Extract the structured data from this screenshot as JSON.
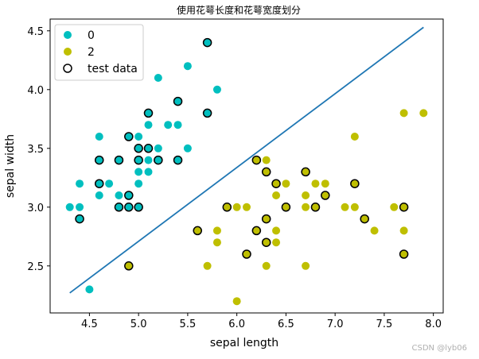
{
  "chart_data": {
    "type": "scatter",
    "title": "使用花萼长度和花萼宽度划分",
    "xlabel": "sepal length",
    "ylabel": "sepal width",
    "xlim": [
      4.1,
      8.1
    ],
    "ylim": [
      2.1,
      4.6
    ],
    "x_ticks": [
      4.5,
      5.0,
      5.5,
      6.0,
      6.5,
      7.0,
      7.5,
      8.0
    ],
    "x_tick_labels": [
      "4.5",
      "5.0",
      "5.5",
      "6.0",
      "6.5",
      "7.0",
      "7.5",
      "8.0"
    ],
    "y_ticks": [
      2.5,
      3.0,
      3.5,
      4.0,
      4.5
    ],
    "y_tick_labels": [
      "2.5",
      "3.0",
      "3.5",
      "4.0",
      "4.5"
    ],
    "grid": false,
    "legend_position": "top-left",
    "legend": [
      {
        "label": "0",
        "marker": "filled-circle",
        "color": "#00bfbf"
      },
      {
        "label": "2",
        "marker": "filled-circle",
        "color": "#bfbf00"
      },
      {
        "label": "test data",
        "marker": "hollow-circle",
        "color": "#000000"
      }
    ],
    "series": [
      {
        "name": "0",
        "color": "#00bfbf",
        "points": [
          [
            4.3,
            3.0
          ],
          [
            4.4,
            3.2
          ],
          [
            4.4,
            3.0
          ],
          [
            4.5,
            2.3
          ],
          [
            4.6,
            3.6
          ],
          [
            4.6,
            3.1
          ],
          [
            4.7,
            3.2
          ],
          [
            4.8,
            3.1
          ],
          [
            4.9,
            3.1
          ],
          [
            5.0,
            3.6
          ],
          [
            5.0,
            3.3
          ],
          [
            5.0,
            3.2
          ],
          [
            5.1,
            3.7
          ],
          [
            5.1,
            3.3
          ],
          [
            5.1,
            3.4
          ],
          [
            5.2,
            4.1
          ],
          [
            5.2,
            3.5
          ],
          [
            5.3,
            3.7
          ],
          [
            5.4,
            3.7
          ],
          [
            5.4,
            3.4
          ],
          [
            5.4,
            3.9
          ],
          [
            5.5,
            4.2
          ],
          [
            5.5,
            3.5
          ],
          [
            5.7,
            3.8
          ],
          [
            5.8,
            4.0
          ]
        ]
      },
      {
        "name": "2",
        "color": "#bfbf00",
        "points": [
          [
            5.8,
            2.7
          ],
          [
            5.8,
            2.8
          ],
          [
            6.0,
            3.0
          ],
          [
            6.0,
            2.2
          ],
          [
            6.1,
            3.0
          ],
          [
            6.2,
            2.8
          ],
          [
            6.3,
            3.4
          ],
          [
            6.3,
            2.5
          ],
          [
            6.3,
            2.9
          ],
          [
            6.4,
            2.8
          ],
          [
            6.4,
            3.1
          ],
          [
            6.4,
            2.7
          ],
          [
            6.5,
            3.2
          ],
          [
            6.5,
            3.0
          ],
          [
            6.7,
            3.1
          ],
          [
            6.7,
            3.0
          ],
          [
            6.7,
            2.5
          ],
          [
            6.8,
            3.2
          ],
          [
            6.9,
            3.2
          ],
          [
            7.1,
            3.0
          ],
          [
            7.2,
            3.6
          ],
          [
            7.2,
            3.0
          ],
          [
            7.4,
            2.8
          ],
          [
            7.6,
            3.0
          ],
          [
            7.7,
            3.8
          ],
          [
            7.7,
            2.8
          ],
          [
            7.9,
            3.8
          ],
          [
            5.7,
            2.5
          ]
        ]
      },
      {
        "name": "test data",
        "points": [
          {
            "x": 4.4,
            "y": 2.9,
            "class": "0"
          },
          {
            "x": 4.6,
            "y": 3.4,
            "class": "0"
          },
          {
            "x": 4.6,
            "y": 3.2,
            "class": "0"
          },
          {
            "x": 4.8,
            "y": 3.4,
            "class": "0"
          },
          {
            "x": 4.8,
            "y": 3.0,
            "class": "0"
          },
          {
            "x": 4.9,
            "y": 3.6,
            "class": "0"
          },
          {
            "x": 4.9,
            "y": 3.1,
            "class": "0"
          },
          {
            "x": 4.9,
            "y": 3.0,
            "class": "0"
          },
          {
            "x": 5.0,
            "y": 3.5,
            "class": "0"
          },
          {
            "x": 5.0,
            "y": 3.4,
            "class": "0"
          },
          {
            "x": 5.0,
            "y": 3.0,
            "class": "0"
          },
          {
            "x": 5.1,
            "y": 3.8,
            "class": "0"
          },
          {
            "x": 5.1,
            "y": 3.5,
            "class": "0"
          },
          {
            "x": 5.2,
            "y": 3.4,
            "class": "0"
          },
          {
            "x": 5.4,
            "y": 3.9,
            "class": "0"
          },
          {
            "x": 5.4,
            "y": 3.4,
            "class": "0"
          },
          {
            "x": 5.7,
            "y": 4.4,
            "class": "0"
          },
          {
            "x": 5.7,
            "y": 3.8,
            "class": "0"
          },
          {
            "x": 4.9,
            "y": 2.5,
            "class": "2"
          },
          {
            "x": 5.6,
            "y": 2.8,
            "class": "2"
          },
          {
            "x": 5.9,
            "y": 3.0,
            "class": "2"
          },
          {
            "x": 6.1,
            "y": 2.6,
            "class": "2"
          },
          {
            "x": 6.2,
            "y": 3.4,
            "class": "2"
          },
          {
            "x": 6.2,
            "y": 2.8,
            "class": "2"
          },
          {
            "x": 6.3,
            "y": 3.3,
            "class": "2"
          },
          {
            "x": 6.3,
            "y": 2.9,
            "class": "2"
          },
          {
            "x": 6.3,
            "y": 2.7,
            "class": "2"
          },
          {
            "x": 6.4,
            "y": 3.2,
            "class": "2"
          },
          {
            "x": 6.5,
            "y": 3.0,
            "class": "2"
          },
          {
            "x": 6.7,
            "y": 3.3,
            "class": "2"
          },
          {
            "x": 6.8,
            "y": 3.0,
            "class": "2"
          },
          {
            "x": 6.9,
            "y": 3.1,
            "class": "2"
          },
          {
            "x": 7.2,
            "y": 3.2,
            "class": "2"
          },
          {
            "x": 7.3,
            "y": 2.9,
            "class": "2"
          },
          {
            "x": 7.7,
            "y": 3.0,
            "class": "2"
          },
          {
            "x": 7.7,
            "y": 2.6,
            "class": "2"
          }
        ]
      },
      {
        "name": "decision boundary",
        "type": "line",
        "color": "#1f77b4",
        "points": [
          [
            4.3,
            2.27
          ],
          [
            7.9,
            4.53
          ]
        ]
      }
    ]
  },
  "watermark": "CSDN @lyb06"
}
